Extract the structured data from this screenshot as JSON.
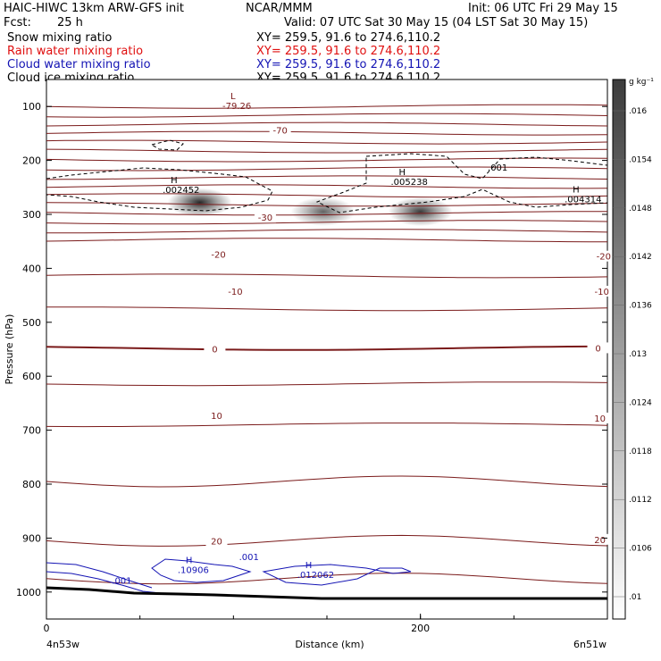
{
  "header": {
    "model": "HAIC-HIWC 13km ARW-GFS init",
    "org": "NCAR/MMM",
    "init": "Init: 06 UTC Fri 29 May 15",
    "fcst_label": "Fcst:",
    "fcst_value": "25 h",
    "valid": "Valid: 07 UTC Sat 30 May 15 (04 LST Sat 30 May 15)"
  },
  "fields": [
    {
      "name": "Snow mixing ratio",
      "xy": "XY= 259.5, 91.6 to 274.6,110.2",
      "color": "#000000"
    },
    {
      "name": "Rain water mixing ratio",
      "xy": "XY= 259.5, 91.6 to 274.6,110.2",
      "color": "#e01010"
    },
    {
      "name": "Cloud water mixing ratio",
      "xy": "XY= 259.5, 91.6 to 274.6,110.2",
      "color": "#1414b4"
    },
    {
      "name": "Cloud ice mixing ratio",
      "xy": "XY= 259.5, 91.6 to 274.6,110.2",
      "color": "#000000"
    }
  ],
  "chart_data": {
    "type": "contour",
    "xlabel": "Distance (km)",
    "ylabel": "Pressure (hPa)",
    "x_left_label": "4n53w",
    "x_right_label": "6n51w",
    "xlim": [
      0,
      300
    ],
    "x_ticks": [
      0,
      200
    ],
    "ylim": [
      1050,
      50
    ],
    "y_ticks": [
      100,
      200,
      300,
      400,
      500,
      600,
      700,
      800,
      900,
      1000
    ],
    "y_scale": "linear",
    "colorbar": {
      "unit": "g kg⁻¹",
      "levels": [
        ".01",
        ".0106",
        ".0112",
        ".0118",
        ".0124",
        ".013",
        ".0136",
        ".0142",
        ".0148",
        ".0154",
        ".016"
      ]
    },
    "temperature_labels": [
      {
        "text": "-70",
        "x": 125,
        "p": 145
      },
      {
        "text": "-30",
        "x": 117,
        "p": 307
      },
      {
        "text": "-20",
        "x": 92,
        "p": 375
      },
      {
        "text": "-20",
        "x": 298,
        "p": 379
      },
      {
        "text": "-10",
        "x": 101,
        "p": 444
      },
      {
        "text": "-10",
        "x": 297,
        "p": 444
      },
      {
        "text": "0",
        "x": 90,
        "p": 551
      },
      {
        "text": "0",
        "x": 295,
        "p": 549
      },
      {
        "text": "10",
        "x": 91,
        "p": 674
      },
      {
        "text": "10",
        "x": 296,
        "p": 679
      },
      {
        "text": "20",
        "x": 91,
        "p": 907
      },
      {
        "text": "20",
        "x": 296,
        "p": 904
      }
    ],
    "extrema": [
      {
        "kind": "L",
        "value": "-79.26",
        "x": 97,
        "p": 100
      },
      {
        "kind": "H",
        "value": ".002452",
        "x": 65,
        "p": 255
      },
      {
        "kind": "H",
        "value": ".005238",
        "x": 187,
        "p": 240
      },
      {
        "kind": "H",
        "value": ".004314",
        "x": 280,
        "p": 273
      },
      {
        "kind": "H",
        "value": ".10906",
        "x": 73,
        "p": 960
      },
      {
        "kind": "H",
        "value": ".012062",
        "x": 137,
        "p": 969
      }
    ],
    "cloud_ice_labels": [
      {
        "text": ".001",
        "x": 236,
        "p": 219
      }
    ],
    "cloud_water_labels": [
      {
        "text": ".001",
        "x": 35,
        "p": 985
      },
      {
        "text": ".001",
        "x": 103,
        "p": 941
      }
    ],
    "snow_maxima": [
      {
        "x": 82,
        "p": 278,
        "value": 0.016
      },
      {
        "x": 148,
        "p": 295,
        "value": 0.013
      },
      {
        "x": 200,
        "p": 295,
        "value": 0.015
      }
    ]
  }
}
